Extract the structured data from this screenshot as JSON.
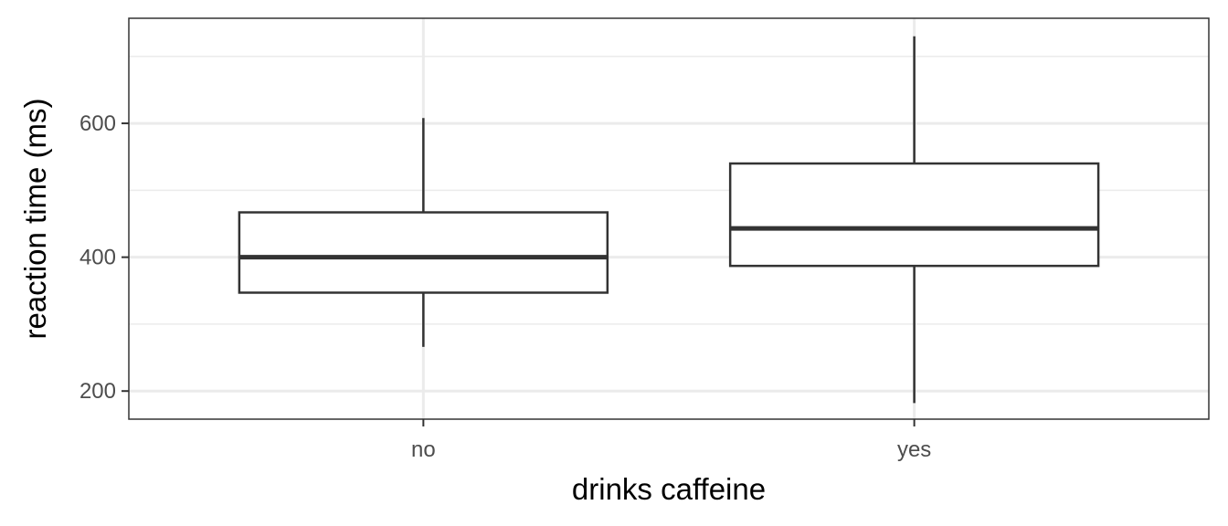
{
  "chart_data": {
    "type": "boxplot",
    "title": "",
    "xlabel": "drinks caffeine",
    "ylabel": "reaction time (ms)",
    "categories": [
      "no",
      "yes"
    ],
    "boxes": [
      {
        "category": "no",
        "whisker_low": 266,
        "q1": 347,
        "median": 400,
        "q3": 467,
        "whisker_high": 608
      },
      {
        "category": "yes",
        "whisker_low": 182,
        "q1": 387,
        "median": 443,
        "q3": 540,
        "whisker_high": 730
      }
    ],
    "ylim": [
      158,
      757
    ],
    "yticks": [
      200,
      400,
      600
    ],
    "yticks_minor": [
      300,
      500,
      700
    ],
    "grid": true,
    "colors": {
      "box_line": "#333333",
      "box_fill": "#ffffff",
      "grid": "#ebebeb",
      "panel_border": "#333333"
    }
  }
}
